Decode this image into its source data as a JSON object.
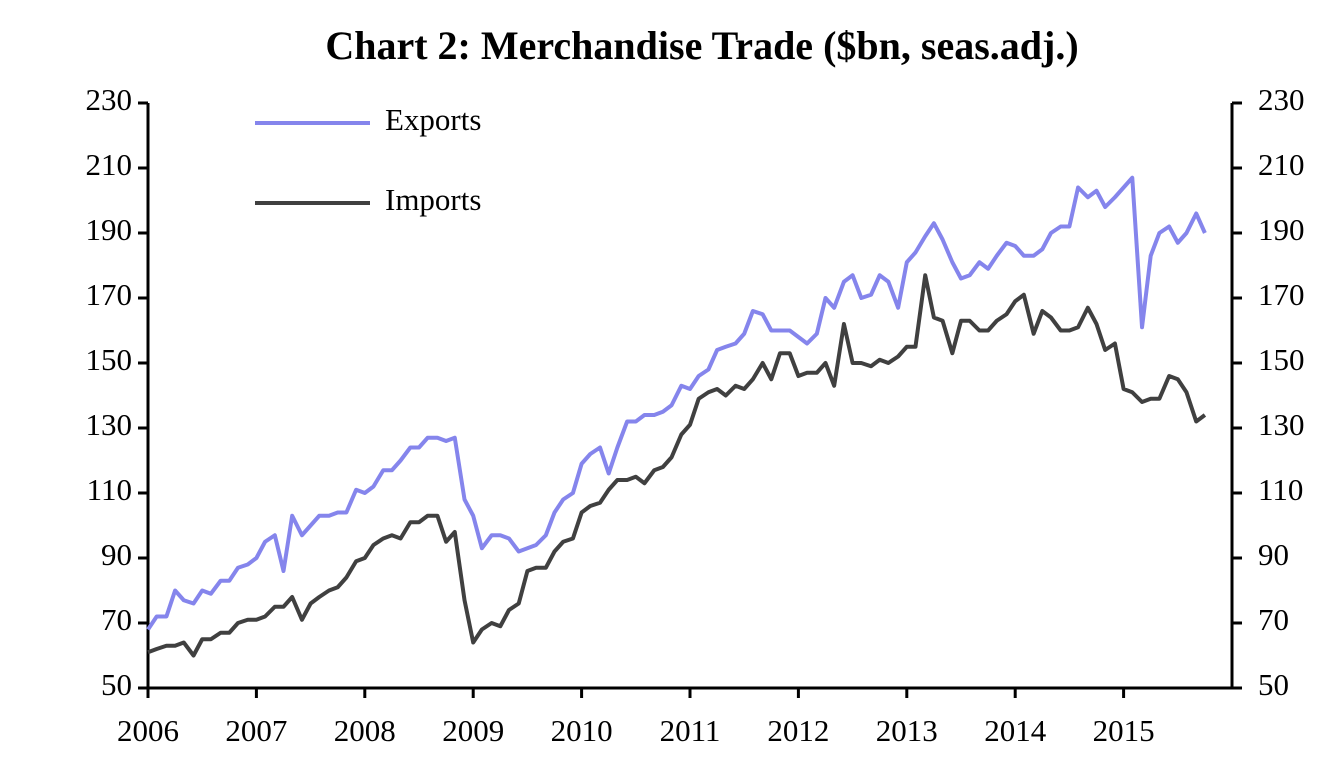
{
  "chart_data": {
    "type": "line",
    "title": "Chart 2: Merchandise Trade ($bn, seas.adj.)",
    "x": [
      2006,
      2006.08,
      2006.17,
      2006.25,
      2006.33,
      2006.42,
      2006.5,
      2006.58,
      2006.67,
      2006.75,
      2006.83,
      2006.92,
      2007,
      2007.08,
      2007.17,
      2007.25,
      2007.33,
      2007.42,
      2007.5,
      2007.58,
      2007.67,
      2007.75,
      2007.83,
      2007.92,
      2008,
      2008.08,
      2008.17,
      2008.25,
      2008.33,
      2008.42,
      2008.5,
      2008.58,
      2008.67,
      2008.75,
      2008.83,
      2008.92,
      2009,
      2009.08,
      2009.17,
      2009.25,
      2009.33,
      2009.42,
      2009.5,
      2009.58,
      2009.67,
      2009.75,
      2009.83,
      2009.92,
      2010,
      2010.08,
      2010.17,
      2010.25,
      2010.33,
      2010.42,
      2010.5,
      2010.58,
      2010.67,
      2010.75,
      2010.83,
      2010.92,
      2011,
      2011.08,
      2011.17,
      2011.25,
      2011.33,
      2011.42,
      2011.5,
      2011.58,
      2011.67,
      2011.75,
      2011.83,
      2011.92,
      2012,
      2012.08,
      2012.17,
      2012.25,
      2012.33,
      2012.42,
      2012.5,
      2012.58,
      2012.67,
      2012.75,
      2012.83,
      2012.92,
      2013,
      2013.08,
      2013.17,
      2013.25,
      2013.33,
      2013.42,
      2013.5,
      2013.58,
      2013.67,
      2013.75,
      2013.83,
      2013.92,
      2014,
      2014.08,
      2014.17,
      2014.25,
      2014.33,
      2014.42,
      2014.5,
      2014.58,
      2014.67,
      2014.75,
      2014.83,
      2014.92,
      2015,
      2015.08,
      2015.17,
      2015.25,
      2015.33,
      2015.42,
      2015.5,
      2015.58,
      2015.67,
      2015.75
    ],
    "series": [
      {
        "name": "Exports",
        "color": "#8585ec",
        "values": [
          68,
          72,
          72,
          80,
          77,
          76,
          80,
          79,
          83,
          83,
          87,
          88,
          90,
          95,
          97,
          86,
          103,
          97,
          100,
          103,
          103,
          104,
          104,
          111,
          110,
          112,
          117,
          117,
          120,
          124,
          124,
          127,
          127,
          126,
          127,
          108,
          103,
          93,
          97,
          97,
          96,
          92,
          93,
          94,
          97,
          104,
          108,
          110,
          119,
          122,
          124,
          116,
          124,
          132,
          132,
          134,
          134,
          135,
          137,
          143,
          142,
          146,
          148,
          154,
          155,
          156,
          159,
          166,
          165,
          160,
          160,
          160,
          158,
          156,
          159,
          170,
          167,
          175,
          177,
          170,
          171,
          177,
          175,
          167,
          181,
          184,
          189,
          193,
          188,
          181,
          176,
          177,
          181,
          179,
          183,
          187,
          186,
          183,
          183,
          185,
          190,
          192,
          192,
          204,
          201,
          203,
          198,
          201,
          204,
          207,
          161,
          183,
          190,
          192,
          187,
          190,
          196,
          190
        ]
      },
      {
        "name": "Imports",
        "color": "#404040",
        "values": [
          61,
          62,
          63,
          63,
          64,
          60,
          65,
          65,
          67,
          67,
          70,
          71,
          71,
          72,
          75,
          75,
          78,
          71,
          76,
          78,
          80,
          81,
          84,
          89,
          90,
          94,
          96,
          97,
          96,
          101,
          101,
          103,
          103,
          95,
          98,
          77,
          64,
          68,
          70,
          69,
          74,
          76,
          86,
          87,
          87,
          92,
          95,
          96,
          104,
          106,
          107,
          111,
          114,
          114,
          115,
          113,
          117,
          118,
          121,
          128,
          131,
          139,
          141,
          142,
          140,
          143,
          142,
          145,
          150,
          145,
          153,
          153,
          146,
          147,
          147,
          150,
          143,
          162,
          150,
          150,
          149,
          151,
          150,
          152,
          155,
          155,
          177,
          164,
          163,
          153,
          163,
          163,
          160,
          160,
          163,
          165,
          169,
          171,
          159,
          166,
          164,
          160,
          160,
          161,
          167,
          162,
          154,
          156,
          142,
          141,
          138,
          139,
          139,
          146,
          145,
          141,
          132,
          134
        ]
      }
    ],
    "xlim": [
      2006,
      2016
    ],
    "xticks": [
      2006,
      2007,
      2008,
      2009,
      2010,
      2011,
      2012,
      2013,
      2014,
      2015
    ],
    "ylim": [
      50,
      230
    ],
    "yticks": [
      50,
      70,
      90,
      110,
      130,
      150,
      170,
      190,
      210,
      230
    ],
    "legend": "upper left",
    "grid": false
  }
}
